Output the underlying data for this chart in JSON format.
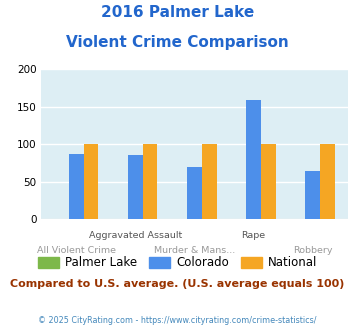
{
  "title_line1": "2016 Palmer Lake",
  "title_line2": "Violent Crime Comparison",
  "categories": [
    "All Violent Crime",
    "Aggravated Assault",
    "Murder & Mans...",
    "Rape",
    "Robbery"
  ],
  "series": {
    "Palmer Lake": [
      0,
      0,
      0,
      0,
      0
    ],
    "Colorado": [
      87,
      86,
      70,
      159,
      64
    ],
    "National": [
      100,
      100,
      100,
      100,
      100
    ]
  },
  "colors": {
    "Palmer Lake": "#7db84a",
    "Colorado": "#4d8fea",
    "National": "#f5a623"
  },
  "ylim": [
    0,
    200
  ],
  "yticks": [
    0,
    50,
    100,
    150,
    200
  ],
  "bg_color": "#ddeef4",
  "title_color": "#2266cc",
  "subtitle_note": "Compared to U.S. average. (U.S. average equals 100)",
  "subtitle_color": "#993300",
  "footer": "© 2025 CityRating.com - https://www.cityrating.com/crime-statistics/",
  "footer_color": "#4488bb",
  "x_top_labels": [
    "",
    "Aggravated Assault",
    "",
    "Rape",
    ""
  ],
  "x_bot_labels": [
    "All Violent Crime",
    "",
    "Murder & Mans...",
    "",
    "Robbery"
  ],
  "x_top_color": "#555555",
  "x_bot_color": "#999999"
}
